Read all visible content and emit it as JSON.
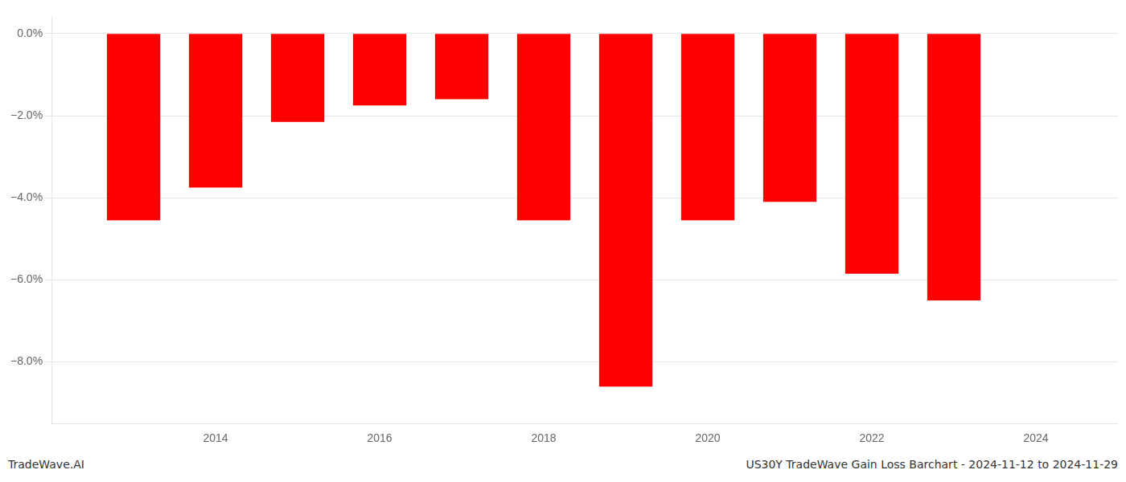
{
  "chart_data": {
    "type": "bar",
    "title": "US30Y TradeWave Gain Loss Barchart - 2024-11-12 to 2024-11-29",
    "annotations": [
      "TradeWave.AI"
    ],
    "x": [
      2013,
      2014,
      2015,
      2016,
      2017,
      2018,
      2019,
      2020,
      2021,
      2022,
      2023
    ],
    "values": [
      -4.55,
      -3.75,
      -2.15,
      -1.75,
      -1.6,
      -4.55,
      -8.6,
      -4.55,
      -4.1,
      -5.85,
      -6.5
    ],
    "color": "#ff0000",
    "xlim": [
      2012.0,
      2025.0
    ],
    "xticks": [
      2014,
      2016,
      2018,
      2020,
      2022,
      2024
    ],
    "ylim": [
      -9.5,
      0.4
    ],
    "yticks": [
      {
        "value": 0.0,
        "label": "0.0%"
      },
      {
        "value": -2.0,
        "label": "−2.0%"
      },
      {
        "value": -4.0,
        "label": "−4.0%"
      },
      {
        "value": -6.0,
        "label": "−6.0%"
      },
      {
        "value": -8.0,
        "label": "−8.0%"
      }
    ],
    "grid": true
  }
}
